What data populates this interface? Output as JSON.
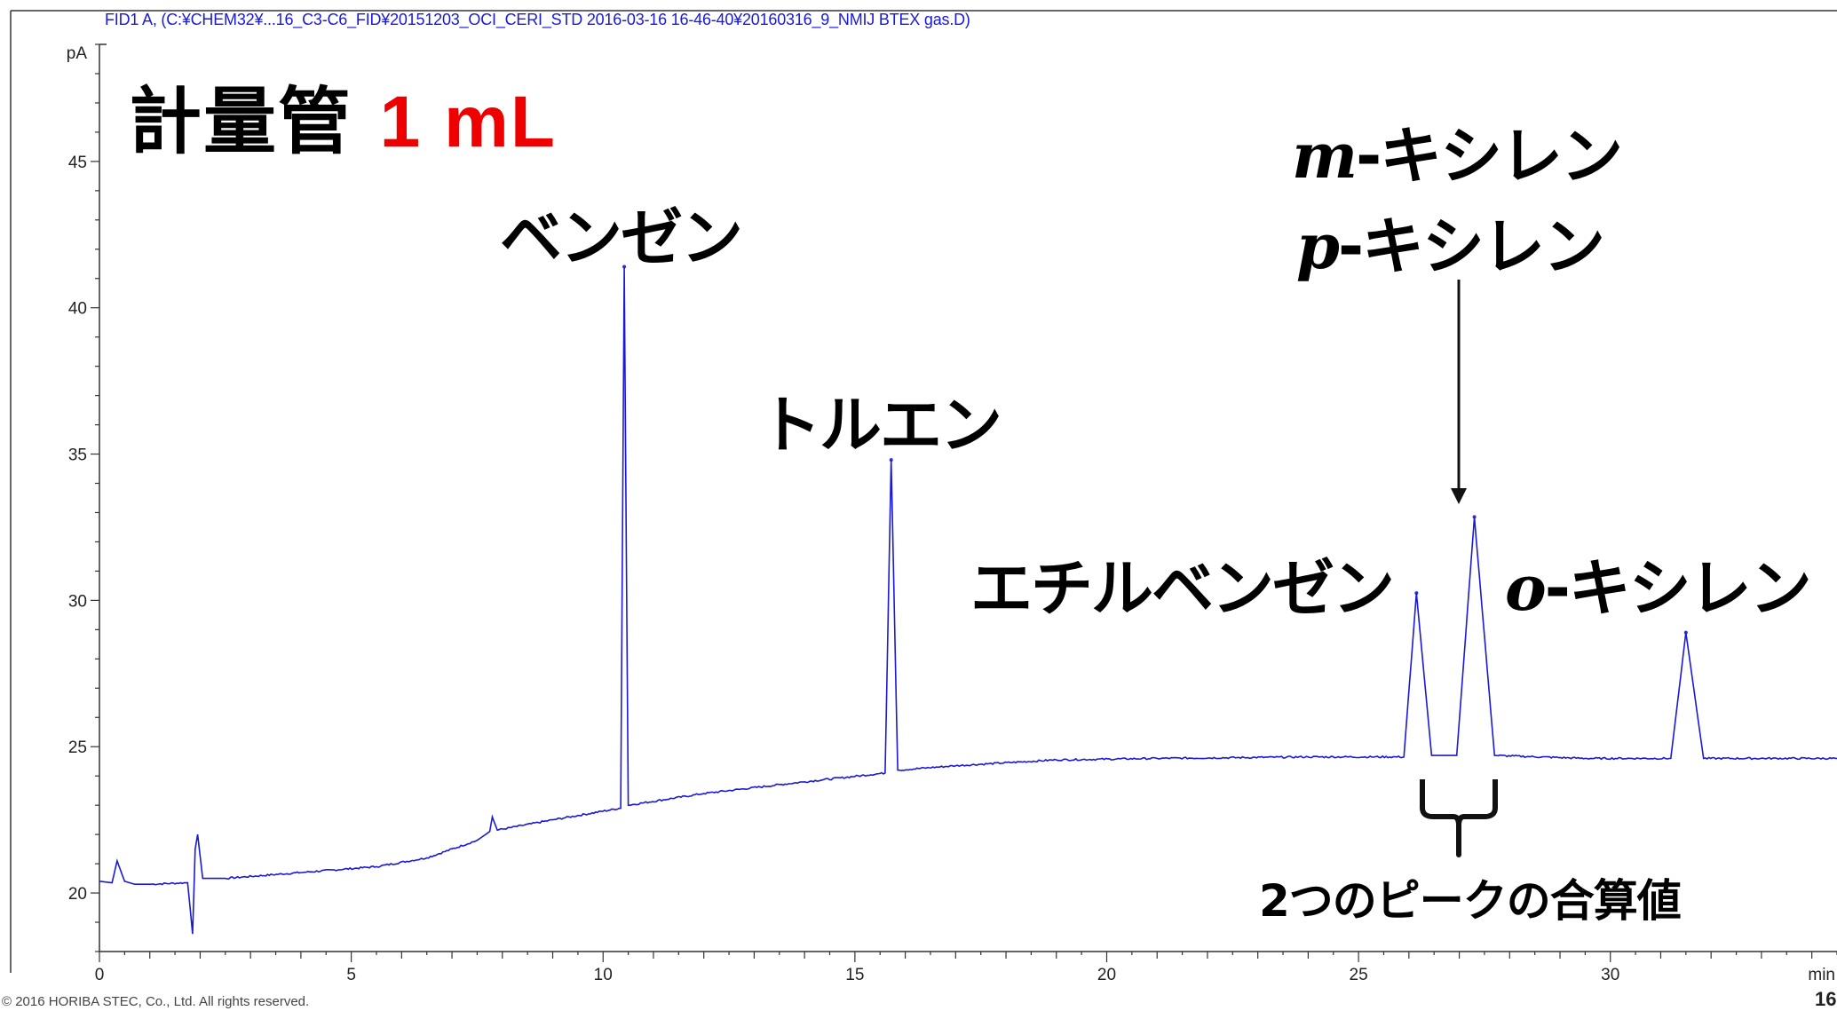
{
  "header": "FID1 A, (C:¥CHEM32¥...16_C3-C6_FID¥20151203_OCI_CERI_STD 2016-03-16 16-46-40¥20160316_9_NMIJ BTEX gas.D)",
  "footer": "© 2016 HORIBA STEC, Co., Ltd. All rights reserved.",
  "page_number": "16",
  "title": {
    "text": "計量管",
    "volume": "1 mL",
    "volume_color": "#ee0000"
  },
  "labels": {
    "benzene": "ベンゼン",
    "toluene": "トルエン",
    "ethylbenzene": "エチルベンゼン",
    "m_prefix": "m",
    "p_prefix": "p",
    "o_prefix": "o",
    "xylene": "‐キシレン",
    "sum_note": "2つのピークの合算値"
  },
  "chart_data": {
    "type": "line",
    "xlabel": "min",
    "ylabel": "pA",
    "xlim": [
      0,
      34.5
    ],
    "ylim": [
      18,
      49
    ],
    "xticks": [
      0,
      5,
      10,
      15,
      20,
      25,
      30
    ],
    "yticks": [
      20,
      25,
      30,
      35,
      40,
      45
    ],
    "line_color": "#1a1ad6",
    "baseline": [
      [
        0.0,
        20.4
      ],
      [
        0.25,
        20.35
      ],
      [
        0.35,
        21.1
      ],
      [
        0.5,
        20.4
      ],
      [
        0.7,
        20.3
      ],
      [
        1.0,
        20.3
      ],
      [
        1.75,
        20.35
      ],
      [
        1.8,
        19.5
      ],
      [
        1.85,
        18.6
      ],
      [
        1.9,
        21.5
      ],
      [
        1.95,
        22.0
      ],
      [
        2.05,
        20.5
      ],
      [
        2.5,
        20.5
      ],
      [
        4.0,
        20.7
      ],
      [
        5.5,
        20.9
      ],
      [
        6.5,
        21.2
      ],
      [
        7.5,
        21.8
      ],
      [
        7.75,
        22.1
      ],
      [
        7.8,
        22.6
      ],
      [
        7.9,
        22.15
      ],
      [
        9.0,
        22.5
      ],
      [
        10.35,
        22.9
      ],
      [
        10.42,
        41.4
      ],
      [
        10.5,
        23.0
      ],
      [
        12.0,
        23.4
      ],
      [
        14.0,
        23.8
      ],
      [
        15.6,
        24.1
      ],
      [
        15.72,
        34.8
      ],
      [
        15.85,
        24.2
      ],
      [
        17.0,
        24.35
      ],
      [
        19.0,
        24.55
      ],
      [
        21.0,
        24.6
      ],
      [
        24.0,
        24.65
      ],
      [
        25.9,
        24.65
      ],
      [
        26.15,
        30.25
      ],
      [
        26.45,
        24.7
      ],
      [
        26.95,
        24.7
      ],
      [
        27.3,
        32.85
      ],
      [
        27.7,
        24.7
      ],
      [
        29.5,
        24.6
      ],
      [
        31.2,
        24.6
      ],
      [
        31.5,
        28.9
      ],
      [
        31.85,
        24.6
      ],
      [
        34.5,
        24.6
      ]
    ],
    "peaks": [
      {
        "name": "ベンゼン",
        "rt": 10.42,
        "height": 41.4
      },
      {
        "name": "トルエン",
        "rt": 15.72,
        "height": 34.8
      },
      {
        "name": "エチルベンゼン",
        "rt": 26.15,
        "height": 30.25
      },
      {
        "name": "m-キシレン / p-キシレン",
        "rt": 27.3,
        "height": 32.85
      },
      {
        "name": "o-キシレン",
        "rt": 31.5,
        "height": 28.9
      }
    ]
  }
}
